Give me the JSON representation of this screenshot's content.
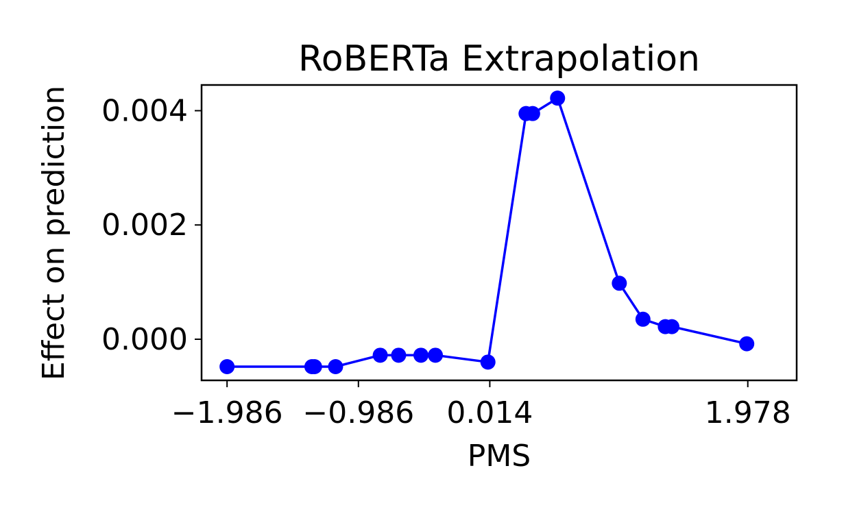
{
  "chart_data": {
    "type": "line",
    "title": "RoBERTa Extrapolation",
    "xlabel": "PMS",
    "ylabel": "Effect on prediction",
    "xlim": [
      -2.18,
      2.35
    ],
    "ylim": [
      -0.00072,
      0.00445
    ],
    "xticks": [
      {
        "value": -1.986,
        "label": "−1.986"
      },
      {
        "value": -0.986,
        "label": "−0.986"
      },
      {
        "value": 0.014,
        "label": "0.014"
      },
      {
        "value": 1.978,
        "label": "1.978"
      }
    ],
    "yticks": [
      {
        "value": 0.0,
        "label": "0.000"
      },
      {
        "value": 0.002,
        "label": "0.002"
      },
      {
        "value": 0.004,
        "label": "0.004"
      }
    ],
    "grid": false,
    "colors": {
      "line": "#0000ff",
      "marker": "#0000ff"
    },
    "series": [
      {
        "x": [
          -1.986,
          -1.34,
          -1.32,
          -1.16,
          -0.82,
          -0.68,
          -0.51,
          -0.4,
          0.0,
          0.29,
          0.34,
          0.53,
          1.0,
          1.18,
          1.35,
          1.4,
          1.97
        ],
        "y": [
          -0.00048,
          -0.00048,
          -0.00048,
          -0.00048,
          -0.00028,
          -0.00028,
          -0.00028,
          -0.00028,
          -0.0004,
          0.00395,
          0.00395,
          0.00422,
          0.00098,
          0.00035,
          0.00022,
          0.00022,
          -8e-05
        ]
      }
    ]
  }
}
